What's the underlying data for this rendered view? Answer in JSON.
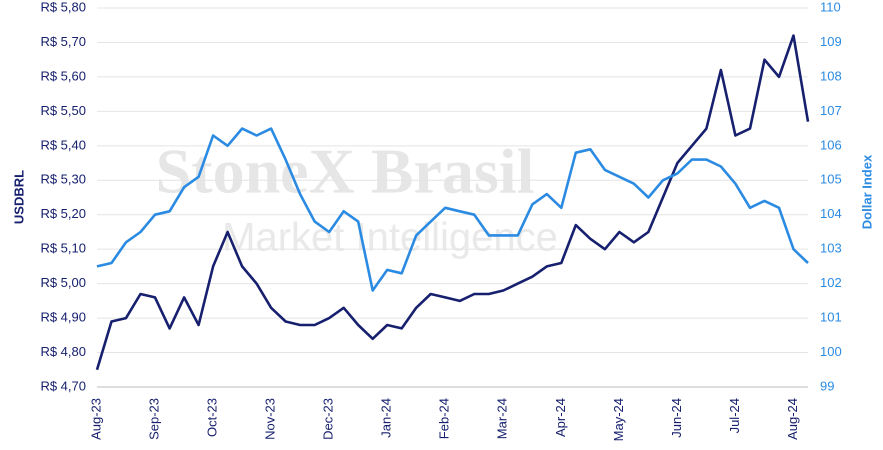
{
  "chart_data": {
    "type": "line",
    "watermark": {
      "title": "StoneX Brasil",
      "subtitle": "Market Intelligence"
    },
    "y_label": "USDBRL",
    "y2_label": "Dollar Index",
    "categories": [
      "Aug-23",
      null,
      null,
      null,
      "Sep-23",
      null,
      null,
      null,
      "Oct-23",
      null,
      null,
      null,
      "Nov-23",
      null,
      null,
      null,
      "Dec-23",
      null,
      null,
      null,
      "Jan-24",
      null,
      null,
      null,
      "Feb-24",
      null,
      null,
      null,
      "Mar-24",
      null,
      null,
      null,
      "Apr-24",
      null,
      null,
      null,
      "May-24",
      null,
      null,
      null,
      "Jun-24",
      null,
      null,
      null,
      "Jul-24",
      null,
      null,
      null,
      "Aug-24",
      null
    ],
    "series": [
      {
        "name": "USDBRL",
        "color": "#17206e",
        "values": [
          4.75,
          4.89,
          4.9,
          4.97,
          4.96,
          4.87,
          4.96,
          4.88,
          5.05,
          5.15,
          5.05,
          5.0,
          4.93,
          4.89,
          4.88,
          4.88,
          4.9,
          4.93,
          4.88,
          4.84,
          4.88,
          4.87,
          4.93,
          4.97,
          4.96,
          4.95,
          4.97,
          4.97,
          4.98,
          5.0,
          5.02,
          5.05,
          5.06,
          5.17,
          5.13,
          5.1,
          5.15,
          5.12,
          5.15,
          5.25,
          5.35,
          5.4,
          5.45,
          5.62,
          5.43,
          5.45,
          5.65,
          5.6,
          5.72,
          5.47
        ]
      },
      {
        "name": "Dollar Index",
        "color": "#2b8be2",
        "axis": "y2",
        "values": [
          102.5,
          102.6,
          103.2,
          103.5,
          104.0,
          104.1,
          104.8,
          105.1,
          106.3,
          106.0,
          106.5,
          106.3,
          106.5,
          105.6,
          104.6,
          103.8,
          103.5,
          104.1,
          103.8,
          101.8,
          102.4,
          102.3,
          103.4,
          103.8,
          104.2,
          104.1,
          104.0,
          103.4,
          103.4,
          103.4,
          104.3,
          104.6,
          104.2,
          105.8,
          105.9,
          105.3,
          105.1,
          104.9,
          104.5,
          105.0,
          105.2,
          105.6,
          105.6,
          105.4,
          104.9,
          104.2,
          104.4,
          104.2,
          103.0,
          102.6
        ]
      }
    ],
    "ylim": [
      4.7,
      5.8
    ],
    "yticks": [
      {
        "value": 4.7,
        "label": "R$ 4,70"
      },
      {
        "value": 4.8,
        "label": "R$ 4,80"
      },
      {
        "value": 4.9,
        "label": "R$ 4,90"
      },
      {
        "value": 5.0,
        "label": "R$ 5,00"
      },
      {
        "value": 5.1,
        "label": "R$ 5,10"
      },
      {
        "value": 5.2,
        "label": "R$ 5,20"
      },
      {
        "value": 5.3,
        "label": "R$ 5,30"
      },
      {
        "value": 5.4,
        "label": "R$ 5,40"
      },
      {
        "value": 5.5,
        "label": "R$ 5,50"
      },
      {
        "value": 5.6,
        "label": "R$ 5,60"
      },
      {
        "value": 5.7,
        "label": "R$ 5,70"
      },
      {
        "value": 5.8,
        "label": "R$ 5,80"
      }
    ],
    "y2lim": [
      99,
      110
    ],
    "y2ticks": [
      99,
      100,
      101,
      102,
      103,
      104,
      105,
      106,
      107,
      108,
      109,
      110
    ],
    "grid": true
  }
}
